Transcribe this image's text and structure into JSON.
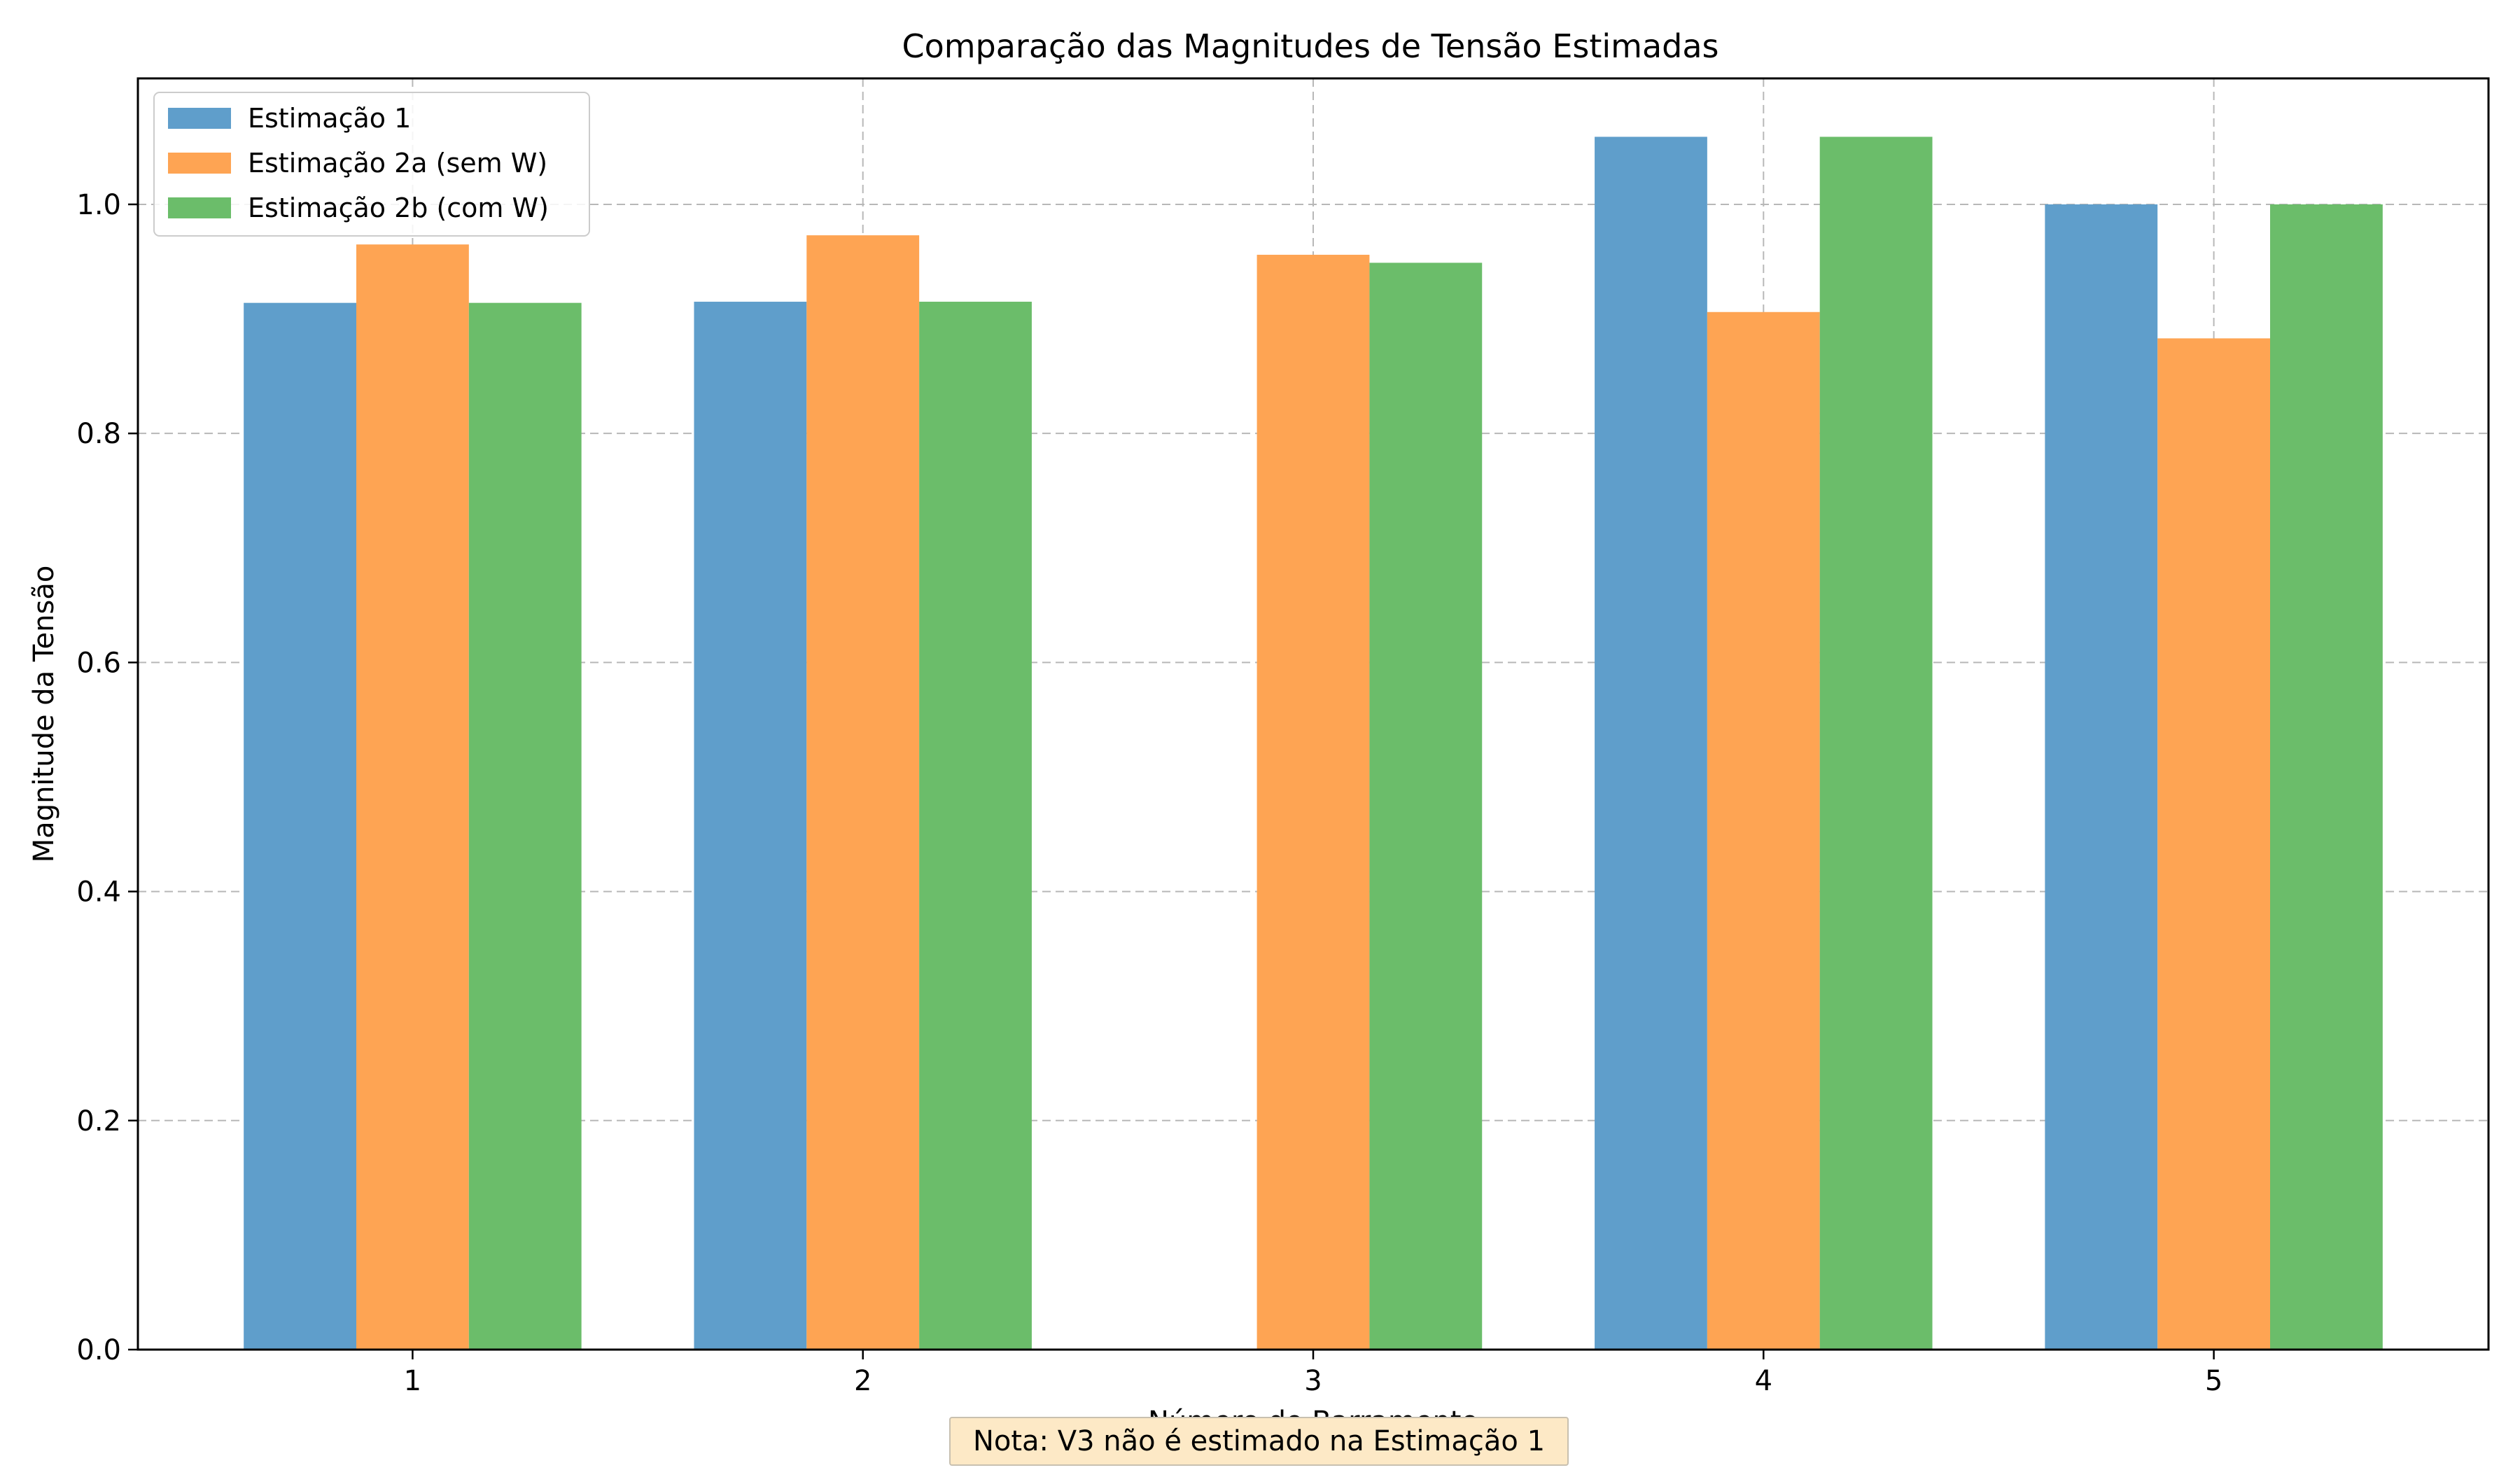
{
  "chart_data": {
    "type": "bar",
    "title": "Comparação das Magnitudes de Tensão Estimadas",
    "xlabel": "Número do Barramento",
    "ylabel": "Magnitude da Tensão",
    "categories": [
      "1",
      "2",
      "3",
      "4",
      "5"
    ],
    "ylim": [
      0,
      1.11
    ],
    "yticks": [
      0.0,
      0.2,
      0.4,
      0.6,
      0.8,
      1.0
    ],
    "ytick_labels": [
      "0.0",
      "0.2",
      "0.4",
      "0.6",
      "0.8",
      "1.0"
    ],
    "grid": true,
    "legend_position": "top-left",
    "series": [
      {
        "name": "Estimação 1",
        "color": "#5f9ecb",
        "values": [
          0.914,
          0.915,
          null,
          1.059,
          1.0
        ]
      },
      {
        "name": "Estimação 2a (sem W)",
        "color": "#fea453",
        "values": [
          0.965,
          0.973,
          0.956,
          0.906,
          0.883
        ]
      },
      {
        "name": "Estimação 2b (com W)",
        "color": "#6bbd6a",
        "values": [
          0.914,
          0.915,
          0.949,
          1.059,
          1.0
        ]
      }
    ],
    "annotation": "Nota: V3 não é estimado na Estimação 1"
  }
}
